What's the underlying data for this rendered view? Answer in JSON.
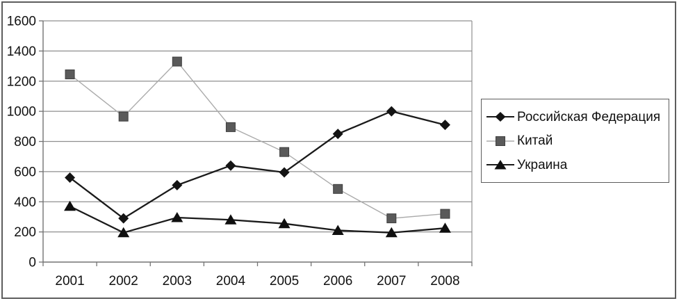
{
  "chart_data": {
    "type": "line",
    "title": "",
    "xlabel": "",
    "ylabel": "",
    "categories": [
      "2001",
      "2002",
      "2003",
      "2004",
      "2005",
      "2006",
      "2007",
      "2008"
    ],
    "series": [
      {
        "name": "Российская Федерация",
        "marker": "diamond",
        "color": "#141414",
        "line_color": "#1a1a1a",
        "values": [
          560,
          290,
          510,
          640,
          595,
          850,
          1000,
          910
        ]
      },
      {
        "name": "Китай",
        "marker": "square",
        "color": "#5a5a5a",
        "line_color": "#ababab",
        "values": [
          1245,
          965,
          1330,
          895,
          730,
          485,
          290,
          320
        ]
      },
      {
        "name": "Украина",
        "marker": "triangle",
        "color": "#0f0f0f",
        "line_color": "#1a1a1a",
        "values": [
          370,
          195,
          295,
          280,
          255,
          210,
          195,
          225
        ]
      }
    ],
    "ylim": [
      0,
      1600
    ],
    "yticks": [
      0,
      200,
      400,
      600,
      800,
      1000,
      1200,
      1400,
      1600
    ],
    "grid": true,
    "legend_position": "right"
  },
  "colors": {
    "grid": "#8f8f8f",
    "axis": "#737373",
    "text": "#111111",
    "background": "#ffffff",
    "frame": "#5d5d5d",
    "legend_border": "#5c5c5c"
  }
}
